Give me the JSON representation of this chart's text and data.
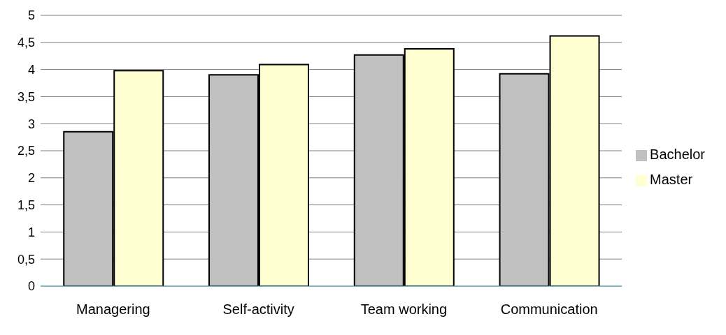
{
  "chart_data": {
    "type": "bar",
    "categories": [
      "Managering",
      "Self-activity",
      "Team working",
      "Communication"
    ],
    "series": [
      {
        "name": "Bachelor",
        "color": "#c0c0c0",
        "values": [
          2.85,
          3.9,
          4.27,
          3.92
        ]
      },
      {
        "name": "Master",
        "color": "#ffffd2",
        "values": [
          3.98,
          4.09,
          4.38,
          4.62
        ]
      }
    ],
    "ylim": [
      0,
      5
    ],
    "yticks": [
      0,
      {
        "value": 0.5,
        "label": "0,5"
      },
      1,
      {
        "value": 1.5,
        "label": "1,5"
      },
      2,
      {
        "value": 2.5,
        "label": "2,5"
      },
      3,
      {
        "value": 3.5,
        "label": "3,5"
      },
      4,
      {
        "value": 4.5,
        "label": "4,5"
      },
      5
    ],
    "grid": "y",
    "legend": "right"
  }
}
